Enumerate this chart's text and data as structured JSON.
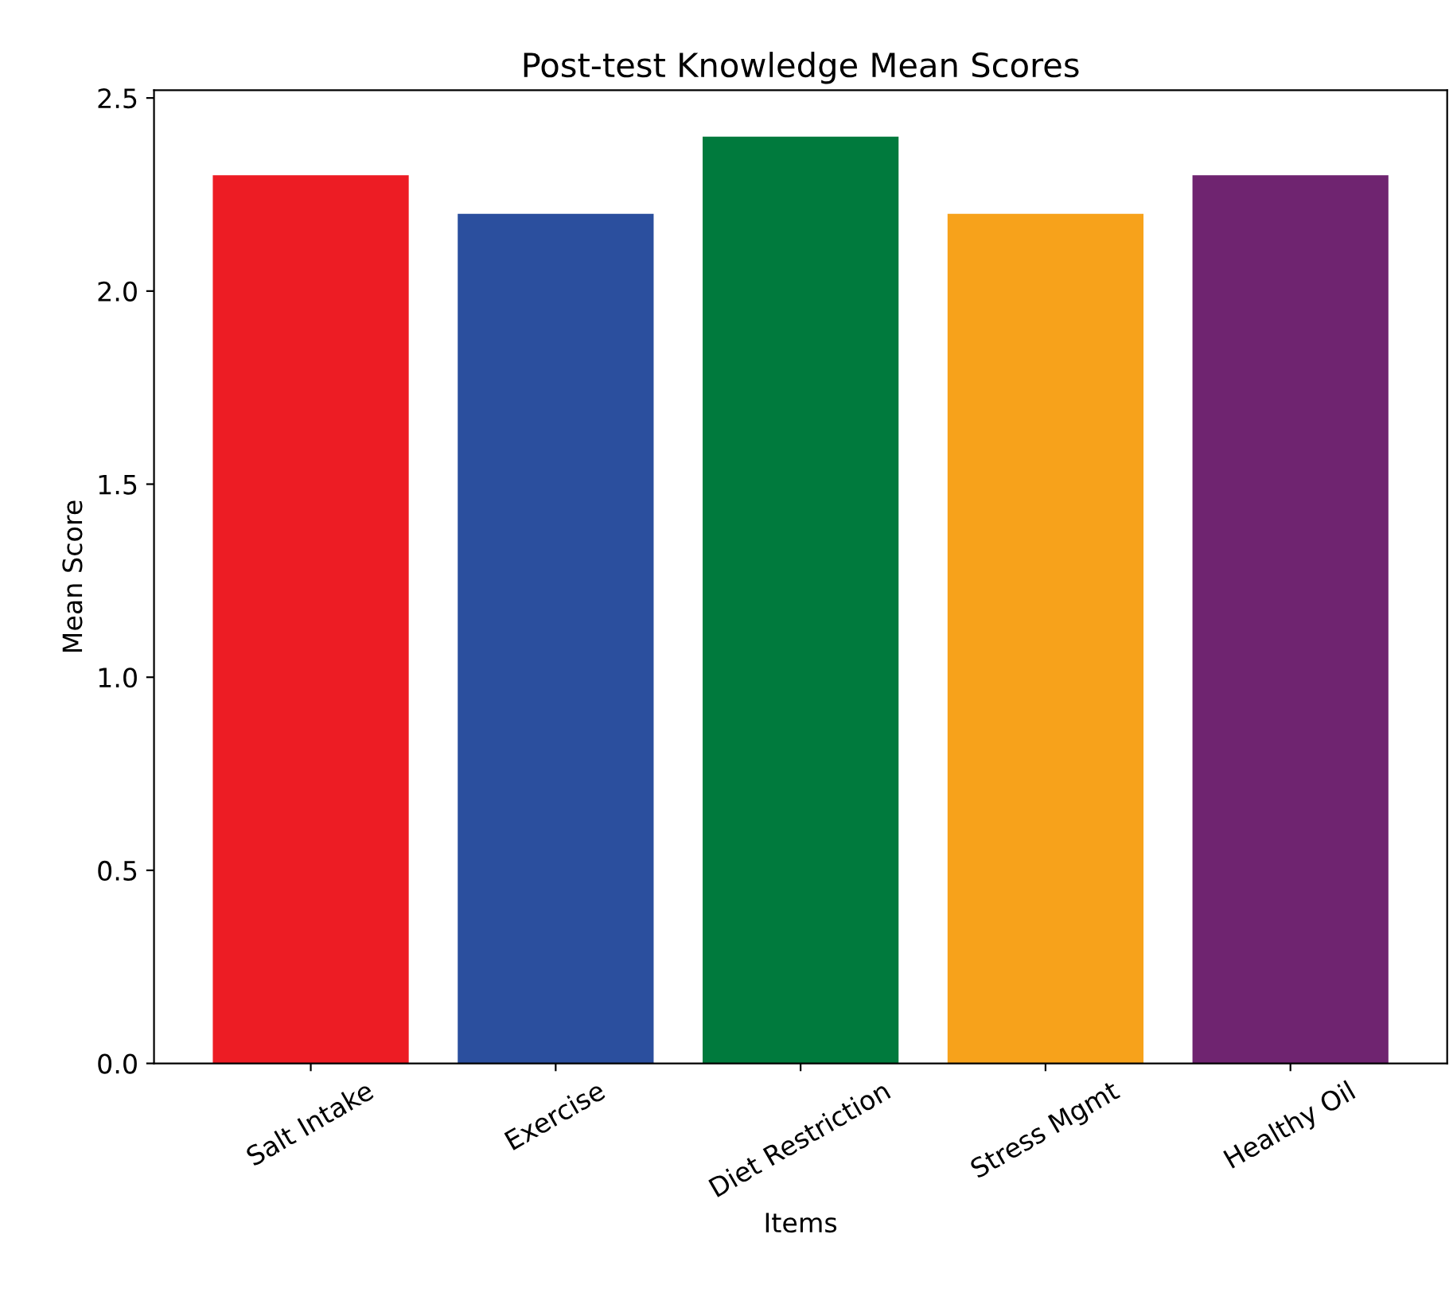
{
  "chart_data": {
    "type": "bar",
    "title": "Post-test Knowledge Mean Scores",
    "xlabel": "Items",
    "ylabel": "Mean Score",
    "categories": [
      "Salt Intake",
      "Exercise",
      "Diet Restriction",
      "Stress Mgmt",
      "Healthy Oil"
    ],
    "values": [
      2.3,
      2.2,
      2.4,
      2.2,
      2.3
    ],
    "colors": [
      "#ed1c24",
      "#2b4f9e",
      "#007a3d",
      "#f7a21b",
      "#6f2470"
    ],
    "ylim": [
      0,
      2.52
    ],
    "yticks": [
      {
        "value": 0,
        "label": "0.0"
      },
      {
        "value": 0.5,
        "label": "0.5"
      },
      {
        "value": 1,
        "label": "1.0"
      },
      {
        "value": 1.5,
        "label": "1.5"
      },
      {
        "value": 2,
        "label": "2.0"
      },
      {
        "value": 2.5,
        "label": "2.5"
      }
    ],
    "grid": false
  }
}
